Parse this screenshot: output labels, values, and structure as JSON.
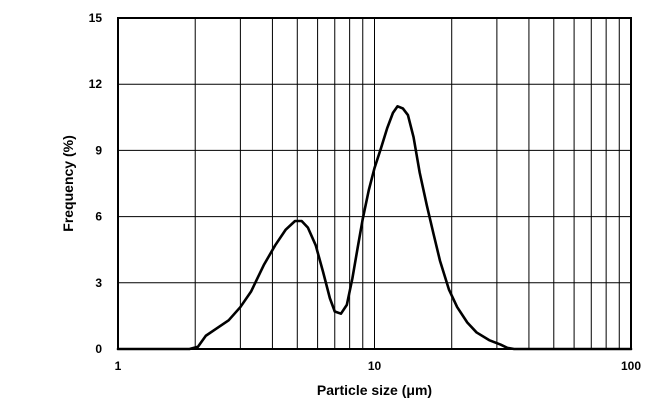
{
  "chart_data": {
    "type": "line",
    "xlabel": "Particle size (μm)",
    "ylabel": "Frequency (%)",
    "xscale": "log",
    "xlim": [
      1,
      100
    ],
    "ylim": [
      0,
      15
    ],
    "x_ticks": [
      1,
      10,
      100
    ],
    "y_ticks": [
      0,
      3,
      6,
      9,
      12,
      15
    ],
    "grid": true,
    "series": [
      {
        "x": [
          1.0,
          1.9,
          2.05,
          2.2,
          2.4,
          2.7,
          3.0,
          3.3,
          3.7,
          4.1,
          4.5,
          4.9,
          5.2,
          5.5,
          5.9,
          6.3,
          6.7,
          7.0,
          7.4,
          7.8,
          8.2,
          8.6,
          9.0,
          9.5,
          10.0,
          10.6,
          11.2,
          11.8,
          12.3,
          12.9,
          13.5,
          14.2,
          15.0,
          16.0,
          17.0,
          18.0,
          19.5,
          21.0,
          23.0,
          25.0,
          28.0,
          31.0,
          33.0,
          35.0,
          100.0
        ],
        "y": [
          0.0,
          0.0,
          0.1,
          0.6,
          0.9,
          1.3,
          1.9,
          2.6,
          3.8,
          4.7,
          5.4,
          5.8,
          5.8,
          5.5,
          4.7,
          3.5,
          2.3,
          1.7,
          1.6,
          2.0,
          3.2,
          4.6,
          5.9,
          7.2,
          8.2,
          9.1,
          10.0,
          10.7,
          11.0,
          10.9,
          10.6,
          9.6,
          8.0,
          6.5,
          5.2,
          4.0,
          2.7,
          1.9,
          1.2,
          0.75,
          0.4,
          0.2,
          0.05,
          0.0,
          0.0
        ]
      }
    ]
  }
}
